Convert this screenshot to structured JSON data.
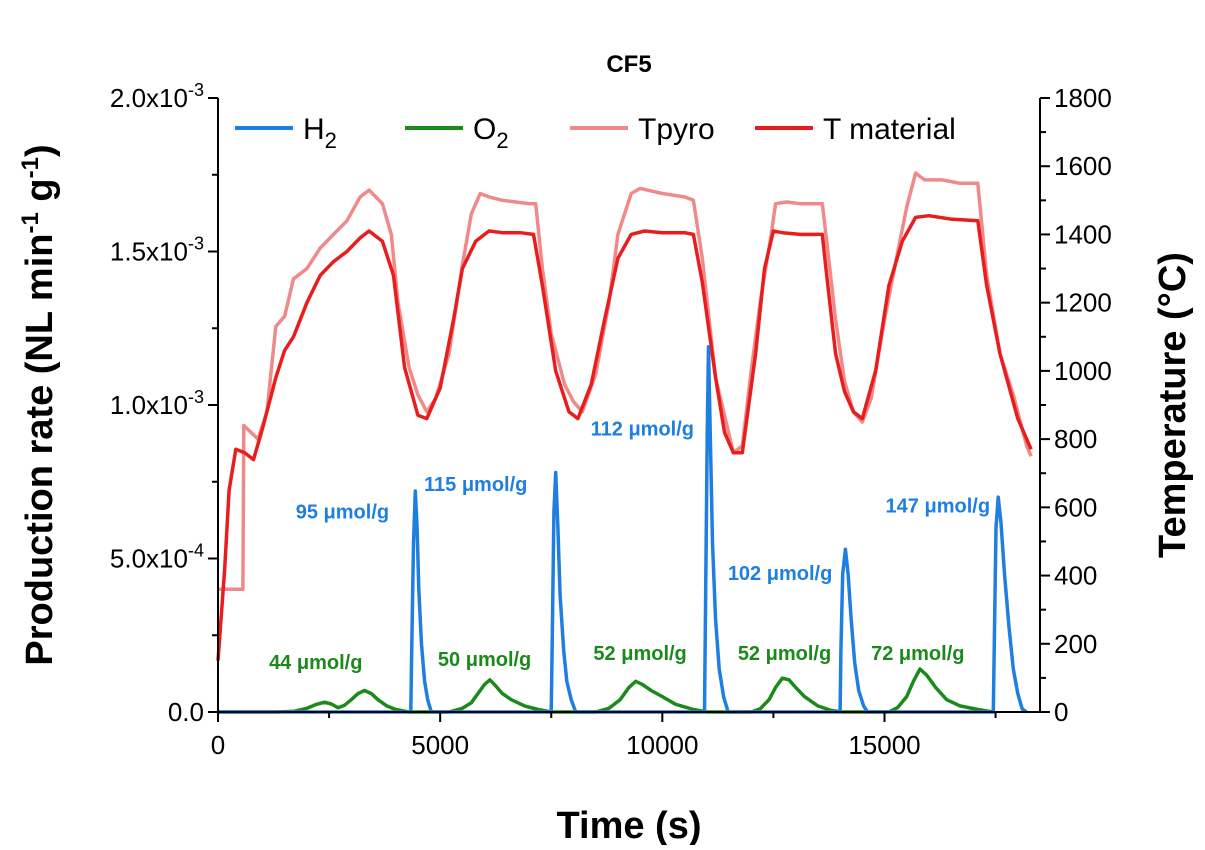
{
  "chart_data": {
    "type": "line",
    "title": "CF5",
    "xlabel": "Time (s)",
    "ylabel": "Production rate (NL min-1 g-1)",
    "ylabel_parts": {
      "main": "Production rate (NL min",
      "sup1": "-1",
      "mid": " g",
      "sup2": "-1",
      "end": ")"
    },
    "y2label": "Temperature (°C)",
    "xlim": [
      0,
      18500
    ],
    "ylim": [
      0,
      0.002
    ],
    "y2lim": [
      0,
      1800
    ],
    "x_ticks": [
      "0",
      "5000",
      "10000",
      "15000"
    ],
    "x_tick_values": [
      0,
      5000,
      10000,
      15000
    ],
    "y_ticks": [
      "0.0",
      "5.0x10-4",
      "1.0x10-3",
      "1.5x10-3",
      "2.0x10-3"
    ],
    "y_tick_values": [
      0,
      0.0005,
      0.001,
      0.0015,
      0.002
    ],
    "y_tick_parts": [
      {
        "base": "0.0",
        "exp": ""
      },
      {
        "base": "5.0x10",
        "exp": "-4"
      },
      {
        "base": "1.0x10",
        "exp": "-3"
      },
      {
        "base": "1.5x10",
        "exp": "-3"
      },
      {
        "base": "2.0x10",
        "exp": "-3"
      }
    ],
    "y2_ticks": [
      "0",
      "200",
      "400",
      "600",
      "800",
      "1000",
      "1200",
      "1400",
      "1600",
      "1800"
    ],
    "y2_tick_values": [
      0,
      200,
      400,
      600,
      800,
      1000,
      1200,
      1400,
      1600,
      1800
    ],
    "legend": {
      "placement": "top",
      "entries": [
        {
          "label": "H2",
          "base": "H",
          "sub": "2",
          "color": "#1f7fe0"
        },
        {
          "label": "O2",
          "base": "O",
          "sub": "2",
          "color": "#1b8a1b"
        },
        {
          "label": "Tpyro",
          "base": "Tpyro",
          "sub": "",
          "color": "#f08a8a"
        },
        {
          "label": "T material",
          "base": "T material",
          "sub": "",
          "color": "#e81e1e"
        }
      ]
    },
    "series": [
      {
        "name": "H2",
        "axis": "left",
        "color": "#1f7fe0",
        "points": [
          [
            0,
            0
          ],
          [
            4340,
            0
          ],
          [
            4360,
            0.0002
          ],
          [
            4400,
            0.00055
          ],
          [
            4440,
            0.00072
          ],
          [
            4480,
            0.0006
          ],
          [
            4520,
            0.0004
          ],
          [
            4580,
            0.00022
          ],
          [
            4650,
            0.0001
          ],
          [
            4720,
            4e-05
          ],
          [
            4800,
            0
          ],
          [
            7500,
            0
          ],
          [
            7520,
            0.0002
          ],
          [
            7560,
            0.00065
          ],
          [
            7600,
            0.00078
          ],
          [
            7650,
            0.0006
          ],
          [
            7700,
            0.00038
          ],
          [
            7780,
            0.0002
          ],
          [
            7850,
            0.0001
          ],
          [
            7950,
            4e-05
          ],
          [
            8050,
            0
          ],
          [
            10950,
            0
          ],
          [
            10970,
            0.0003
          ],
          [
            11010,
            0.0009
          ],
          [
            11040,
            0.00119
          ],
          [
            11080,
            0.0009
          ],
          [
            11130,
            0.00055
          ],
          [
            11200,
            0.0003
          ],
          [
            11280,
            0.00014
          ],
          [
            11380,
            5e-05
          ],
          [
            11480,
            0
          ],
          [
            14000,
            0
          ],
          [
            14020,
            0.0002
          ],
          [
            14060,
            0.00045
          ],
          [
            14120,
            0.00053
          ],
          [
            14180,
            0.00045
          ],
          [
            14250,
            0.0003
          ],
          [
            14330,
            0.00016
          ],
          [
            14420,
            7e-05
          ],
          [
            14530,
            2e-05
          ],
          [
            14620,
            0
          ],
          [
            17450,
            0
          ],
          [
            17470,
            0.0002
          ],
          [
            17510,
            0.0006
          ],
          [
            17560,
            0.0007
          ],
          [
            17620,
            0.00062
          ],
          [
            17700,
            0.00045
          ],
          [
            17800,
            0.00028
          ],
          [
            17900,
            0.00014
          ],
          [
            18000,
            6e-05
          ],
          [
            18100,
            1e-05
          ],
          [
            18200,
            0
          ]
        ]
      },
      {
        "name": "O2",
        "axis": "left",
        "color": "#1b8a1b",
        "points": [
          [
            0,
            0
          ],
          [
            1300,
            0
          ],
          [
            1700,
            2e-06
          ],
          [
            2000,
            1.2e-05
          ],
          [
            2200,
            2.4e-05
          ],
          [
            2400,
            3.2e-05
          ],
          [
            2550,
            2.6e-05
          ],
          [
            2700,
            1.4e-05
          ],
          [
            2850,
            2.2e-05
          ],
          [
            3000,
            4e-05
          ],
          [
            3150,
            6e-05
          ],
          [
            3300,
            7e-05
          ],
          [
            3450,
            6e-05
          ],
          [
            3600,
            4e-05
          ],
          [
            3800,
            2e-05
          ],
          [
            4000,
            8e-06
          ],
          [
            4300,
            0
          ],
          [
            5200,
            0
          ],
          [
            5500,
            1.2e-05
          ],
          [
            5700,
            3e-05
          ],
          [
            5850,
            6e-05
          ],
          [
            6000,
            9e-05
          ],
          [
            6120,
            0.000105
          ],
          [
            6250,
            8.5e-05
          ],
          [
            6400,
            6e-05
          ],
          [
            6600,
            4e-05
          ],
          [
            6900,
            2e-05
          ],
          [
            7200,
            8e-06
          ],
          [
            7500,
            0
          ],
          [
            8500,
            0
          ],
          [
            8800,
            1.2e-05
          ],
          [
            9050,
            4e-05
          ],
          [
            9250,
            8e-05
          ],
          [
            9400,
            0.0001
          ],
          [
            9550,
            9e-05
          ],
          [
            9750,
            7e-05
          ],
          [
            10000,
            5e-05
          ],
          [
            10300,
            2.5e-05
          ],
          [
            10700,
            8e-06
          ],
          [
            11000,
            0
          ],
          [
            12000,
            0
          ],
          [
            12200,
            1e-05
          ],
          [
            12400,
            4e-05
          ],
          [
            12550,
            8e-05
          ],
          [
            12700,
            0.00011
          ],
          [
            12850,
            0.000105
          ],
          [
            13000,
            8e-05
          ],
          [
            13200,
            5e-05
          ],
          [
            13500,
            2e-05
          ],
          [
            13800,
            5e-06
          ],
          [
            14050,
            0
          ],
          [
            15100,
            0
          ],
          [
            15300,
            1.5e-05
          ],
          [
            15500,
            5e-05
          ],
          [
            15650,
            0.0001
          ],
          [
            15800,
            0.00014
          ],
          [
            15950,
            0.00012
          ],
          [
            16150,
            8e-05
          ],
          [
            16400,
            4e-05
          ],
          [
            16700,
            2e-05
          ],
          [
            17100,
            8e-06
          ],
          [
            17450,
            0
          ]
        ]
      },
      {
        "name": "Tpyro",
        "axis": "right",
        "color": "#f08a8a",
        "points": [
          [
            0,
            360
          ],
          [
            560,
            360
          ],
          [
            580,
            840
          ],
          [
            900,
            800
          ],
          [
            1100,
            880
          ],
          [
            1300,
            1130
          ],
          [
            1500,
            1160
          ],
          [
            1700,
            1270
          ],
          [
            2000,
            1300
          ],
          [
            2300,
            1360
          ],
          [
            2600,
            1400
          ],
          [
            2900,
            1440
          ],
          [
            3200,
            1510
          ],
          [
            3400,
            1530
          ],
          [
            3700,
            1490
          ],
          [
            3900,
            1400
          ],
          [
            4050,
            1200
          ],
          [
            4300,
            1010
          ],
          [
            4500,
            930
          ],
          [
            4700,
            880
          ],
          [
            4900,
            920
          ],
          [
            5200,
            1050
          ],
          [
            5500,
            1310
          ],
          [
            5700,
            1460
          ],
          [
            5900,
            1520
          ],
          [
            6100,
            1510
          ],
          [
            6400,
            1500
          ],
          [
            6700,
            1495
          ],
          [
            7000,
            1490
          ],
          [
            7150,
            1490
          ],
          [
            7300,
            1300
          ],
          [
            7500,
            1110
          ],
          [
            7800,
            960
          ],
          [
            8000,
            910
          ],
          [
            8200,
            880
          ],
          [
            8500,
            990
          ],
          [
            8800,
            1200
          ],
          [
            9000,
            1400
          ],
          [
            9300,
            1520
          ],
          [
            9500,
            1535
          ],
          [
            10000,
            1520
          ],
          [
            10500,
            1510
          ],
          [
            10700,
            1500
          ],
          [
            10900,
            1330
          ],
          [
            11200,
            980
          ],
          [
            11600,
            760
          ],
          [
            11800,
            780
          ],
          [
            12000,
            1000
          ],
          [
            12200,
            1200
          ],
          [
            12450,
            1400
          ],
          [
            12550,
            1490
          ],
          [
            12800,
            1495
          ],
          [
            13100,
            1490
          ],
          [
            13600,
            1490
          ],
          [
            13700,
            1380
          ],
          [
            13900,
            1150
          ],
          [
            14100,
            970
          ],
          [
            14300,
            880
          ],
          [
            14500,
            850
          ],
          [
            14700,
            920
          ],
          [
            15000,
            1150
          ],
          [
            15300,
            1350
          ],
          [
            15500,
            1480
          ],
          [
            15700,
            1580
          ],
          [
            15900,
            1560
          ],
          [
            16300,
            1560
          ],
          [
            16700,
            1550
          ],
          [
            17100,
            1550
          ],
          [
            17300,
            1280
          ],
          [
            17600,
            1050
          ],
          [
            17900,
            930
          ],
          [
            18200,
            780
          ],
          [
            18300,
            750
          ]
        ]
      },
      {
        "name": "T material",
        "axis": "right",
        "color": "#e81e1e",
        "points": [
          [
            0,
            150
          ],
          [
            150,
            420
          ],
          [
            250,
            650
          ],
          [
            400,
            770
          ],
          [
            600,
            760
          ],
          [
            800,
            740
          ],
          [
            1000,
            830
          ],
          [
            1300,
            980
          ],
          [
            1500,
            1060
          ],
          [
            1700,
            1100
          ],
          [
            2000,
            1200
          ],
          [
            2300,
            1280
          ],
          [
            2600,
            1320
          ],
          [
            2900,
            1350
          ],
          [
            3200,
            1390
          ],
          [
            3400,
            1410
          ],
          [
            3700,
            1380
          ],
          [
            3950,
            1280
          ],
          [
            4200,
            1010
          ],
          [
            4500,
            870
          ],
          [
            4700,
            860
          ],
          [
            5000,
            950
          ],
          [
            5300,
            1150
          ],
          [
            5500,
            1300
          ],
          [
            5800,
            1380
          ],
          [
            6100,
            1410
          ],
          [
            6400,
            1405
          ],
          [
            6800,
            1405
          ],
          [
            7100,
            1400
          ],
          [
            7300,
            1250
          ],
          [
            7600,
            1000
          ],
          [
            7900,
            880
          ],
          [
            8100,
            860
          ],
          [
            8400,
            960
          ],
          [
            8700,
            1150
          ],
          [
            9000,
            1330
          ],
          [
            9300,
            1400
          ],
          [
            9600,
            1410
          ],
          [
            10000,
            1405
          ],
          [
            10500,
            1405
          ],
          [
            10700,
            1400
          ],
          [
            10900,
            1260
          ],
          [
            11200,
            980
          ],
          [
            11400,
            820
          ],
          [
            11600,
            760
          ],
          [
            11800,
            760
          ],
          [
            12100,
            1050
          ],
          [
            12300,
            1300
          ],
          [
            12500,
            1410
          ],
          [
            12700,
            1405
          ],
          [
            13100,
            1400
          ],
          [
            13600,
            1400
          ],
          [
            13700,
            1280
          ],
          [
            13900,
            1050
          ],
          [
            14100,
            940
          ],
          [
            14300,
            880
          ],
          [
            14500,
            860
          ],
          [
            14800,
            1000
          ],
          [
            15100,
            1250
          ],
          [
            15400,
            1380
          ],
          [
            15700,
            1450
          ],
          [
            16000,
            1455
          ],
          [
            16500,
            1445
          ],
          [
            17100,
            1440
          ],
          [
            17300,
            1250
          ],
          [
            17600,
            1050
          ],
          [
            18000,
            860
          ],
          [
            18300,
            770
          ]
        ]
      }
    ],
    "annotations": [
      {
        "text": "95 μmol/g",
        "x": 2800,
        "y": 0.00063,
        "color": "#1f7fe0"
      },
      {
        "text": "115 μmol/g",
        "x": 5800,
        "y": 0.00072,
        "color": "#1f7fe0"
      },
      {
        "text": "112 μmol/g",
        "x": 9550,
        "y": 0.0009,
        "color": "#1f7fe0"
      },
      {
        "text": "102 μmol/g",
        "x": 12650,
        "y": 0.00043,
        "color": "#1f7fe0"
      },
      {
        "text": "147 μmol/g",
        "x": 16200,
        "y": 0.00065,
        "color": "#1f7fe0"
      },
      {
        "text": "44 μmol/g",
        "x": 2200,
        "y": 0.00014,
        "color": "#1b8a1b"
      },
      {
        "text": "50 μmol/g",
        "x": 6000,
        "y": 0.00015,
        "color": "#1b8a1b"
      },
      {
        "text": "52 μmol/g",
        "x": 9500,
        "y": 0.00017,
        "color": "#1b8a1b"
      },
      {
        "text": "52 μmol/g",
        "x": 12750,
        "y": 0.00017,
        "color": "#1b8a1b"
      },
      {
        "text": "72 μmol/g",
        "x": 15750,
        "y": 0.00017,
        "color": "#1b8a1b"
      }
    ]
  }
}
